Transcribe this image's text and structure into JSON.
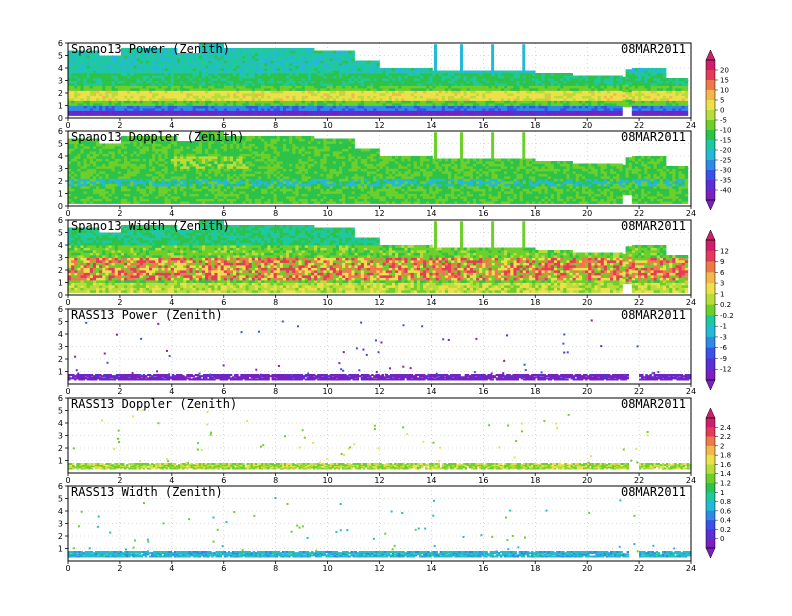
{
  "figure": {
    "date_label": "08MAR2011"
  },
  "colors": {
    "scale": [
      "#7b1fbf",
      "#5a2fd6",
      "#3a52e8",
      "#2f8ae6",
      "#24b9d8",
      "#1fc8a0",
      "#2cc34a",
      "#6dcf2a",
      "#b8dd3a",
      "#eee04a",
      "#f2b84a",
      "#ee7a4a",
      "#e63a5a",
      "#d01f6a"
    ]
  },
  "chart_data": [
    {
      "type": "heatmap",
      "title": "Spano13 Power (Zenith)",
      "x_ticks": [
        "0",
        "2",
        "4",
        "6",
        "8",
        "10",
        "12",
        "14",
        "16",
        "18",
        "20",
        "22",
        "24"
      ],
      "y_ticks": [
        "0",
        "1",
        "2",
        "3",
        "4",
        "5",
        "6"
      ],
      "xlim": [
        0,
        24
      ],
      "ylim": [
        0,
        6
      ],
      "grid": true
    },
    {
      "type": "heatmap",
      "title": "Spano13 Doppler (Zenith)",
      "x_ticks": [
        "0",
        "2",
        "4",
        "6",
        "8",
        "10",
        "12",
        "14",
        "16",
        "18",
        "20",
        "22",
        "24"
      ],
      "y_ticks": [
        "0",
        "1",
        "2",
        "3",
        "4",
        "5",
        "6"
      ],
      "xlim": [
        0,
        24
      ],
      "ylim": [
        0,
        6
      ],
      "grid": true
    },
    {
      "type": "heatmap",
      "title": "Spano13 Width (Zenith)",
      "x_ticks": [
        "0",
        "2",
        "4",
        "6",
        "8",
        "10",
        "12",
        "14",
        "16",
        "18",
        "20",
        "22",
        "24"
      ],
      "y_ticks": [
        "0",
        "1",
        "2",
        "3",
        "4",
        "5",
        "6"
      ],
      "xlim": [
        0,
        24
      ],
      "ylim": [
        0,
        6
      ],
      "grid": true
    },
    {
      "type": "heatmap",
      "title": "RASS13 Power (Zenith)",
      "x_ticks": [
        "0",
        "2",
        "4",
        "6",
        "8",
        "10",
        "12",
        "14",
        "16",
        "18",
        "20",
        "22",
        "24"
      ],
      "y_ticks": [
        "1",
        "2",
        "3",
        "4",
        "5",
        "6"
      ],
      "xlim": [
        0,
        24
      ],
      "ylim": [
        0,
        6
      ],
      "grid": true
    },
    {
      "type": "heatmap",
      "title": "RASS13 Doppler (Zenith)",
      "x_ticks": [
        "0",
        "2",
        "4",
        "6",
        "8",
        "10",
        "12",
        "14",
        "16",
        "18",
        "20",
        "22",
        "24"
      ],
      "y_ticks": [
        "1",
        "2",
        "3",
        "4",
        "5",
        "6"
      ],
      "xlim": [
        0,
        24
      ],
      "ylim": [
        0,
        6
      ],
      "grid": true
    },
    {
      "type": "heatmap",
      "title": "RASS13 Width (Zenith)",
      "x_ticks": [
        "0",
        "2",
        "4",
        "6",
        "8",
        "10",
        "12",
        "14",
        "16",
        "18",
        "20",
        "22",
        "24"
      ],
      "y_ticks": [
        "1",
        "2",
        "3",
        "4",
        "5",
        "6"
      ],
      "xlim": [
        0,
        24
      ],
      "ylim": [
        0,
        6
      ],
      "grid": true
    }
  ],
  "colorbars": [
    {
      "ticks": [
        "20",
        "15",
        "10",
        "5",
        "0",
        "-5",
        "-10",
        "-15",
        "-20",
        "-25",
        "-30",
        "-35",
        "-40"
      ]
    },
    {
      "ticks": [
        "12",
        "9",
        "6",
        "3",
        "1",
        "0.2",
        "-0.2",
        "-1",
        "-3",
        "-6",
        "-9",
        "-12"
      ]
    },
    {
      "ticks": [
        "2.4",
        "2.2",
        "2",
        "1.8",
        "1.6",
        "1.4",
        "1.2",
        "1",
        "0.8",
        "0.6",
        "0.4",
        "0.2",
        "0"
      ]
    }
  ]
}
